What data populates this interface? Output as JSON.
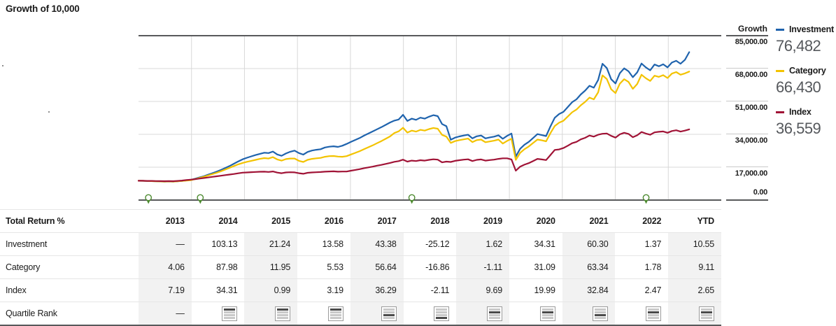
{
  "title": "Growth of 10,000",
  "chart_data": {
    "type": "line",
    "title": "Growth of 10,000",
    "x_unit": "monthly, Jan 2013 - Aug 2023 (years 2013-2022 plus YTD)",
    "grid": true,
    "legend_position": "right",
    "y_axis": {
      "title": "Growth",
      "max": 85000,
      "ticks": [
        {
          "label": "85,000.00",
          "value": 85000
        },
        {
          "label": "68,000.00",
          "value": 68000
        },
        {
          "label": "51,000.00",
          "value": 51000
        },
        {
          "label": "34,000.00",
          "value": 34000
        },
        {
          "label": "17,000.00",
          "value": 17000
        },
        {
          "label": "0.00",
          "value": 0
        }
      ]
    },
    "data_end_fraction": 0.945,
    "event_markers": {
      "color": "#4c8a2f",
      "positions": [
        0.017,
        0.106,
        0.469,
        0.871
      ]
    },
    "series": [
      {
        "name": "Investment",
        "color": "#1f63ad",
        "final_label": "76,482",
        "values": [
          10000,
          9950,
          9850,
          9800,
          9700,
          9620,
          9560,
          9620,
          9540,
          9680,
          9890,
          10150,
          10390,
          11000,
          11700,
          12300,
          13100,
          13900,
          14700,
          15600,
          16600,
          17600,
          18800,
          20000,
          21100,
          21900,
          22600,
          23300,
          23900,
          24500,
          24300,
          25100,
          23600,
          22900,
          24100,
          25000,
          25580,
          24300,
          23500,
          24900,
          25600,
          26000,
          26300,
          27200,
          27600,
          27800,
          27500,
          28100,
          29060,
          30100,
          31100,
          32100,
          33300,
          34400,
          35500,
          36600,
          37700,
          38900,
          40100,
          41100,
          41660,
          44100,
          40900,
          42100,
          41500,
          42600,
          42100,
          43100,
          43900,
          43400,
          39300,
          38200,
          31200,
          32300,
          32900,
          33400,
          33800,
          31900,
          33000,
          33400,
          31900,
          32400,
          32800,
          33500,
          31700,
          33200,
          34400,
          22500,
          26500,
          28600,
          30100,
          32100,
          34100,
          33600,
          33100,
          38100,
          42580,
          44500,
          45600,
          48100,
          50600,
          52100,
          54600,
          56600,
          59100,
          58100,
          62100,
          70500,
          68260,
          62500,
          60300,
          65600,
          68100,
          66600,
          63500,
          66000,
          70600,
          68600,
          67100,
          70100,
          69200,
          70200,
          68600,
          71100,
          72000,
          70500,
          72500,
          76482
        ]
      },
      {
        "name": "Category",
        "color": "#f3c300",
        "final_label": "66,430",
        "values": [
          10000,
          9960,
          9870,
          9820,
          9730,
          9650,
          9600,
          9660,
          9580,
          9720,
          9900,
          10100,
          10220,
          10800,
          11400,
          12000,
          12700,
          13400,
          14100,
          14900,
          15800,
          16700,
          17600,
          18500,
          19210,
          19800,
          20300,
          20800,
          21300,
          21700,
          21500,
          22200,
          21000,
          20400,
          21200,
          21500,
          21500,
          20300,
          19700,
          20800,
          21300,
          21600,
          21800,
          22400,
          22700,
          22800,
          22500,
          22400,
          22700,
          23600,
          24400,
          25300,
          26300,
          27300,
          28300,
          29400,
          30500,
          31700,
          32900,
          34700,
          35550,
          37400,
          34900,
          35900,
          35400,
          36300,
          35900,
          36700,
          37300,
          36900,
          33700,
          32800,
          29560,
          30500,
          31000,
          31400,
          31800,
          30000,
          31000,
          31300,
          29900,
          30300,
          30700,
          31300,
          29230,
          30600,
          31700,
          20800,
          24400,
          26300,
          27700,
          29500,
          31300,
          30900,
          30400,
          34600,
          38320,
          40000,
          41000,
          43200,
          45400,
          46800,
          49000,
          50800,
          53000,
          52100,
          55700,
          64500,
          62590,
          57300,
          55300,
          60200,
          62500,
          61100,
          57500,
          60000,
          64800,
          63000,
          61600,
          64300,
          63700,
          64600,
          63100,
          65400,
          66200,
          64800,
          65500,
          66430
        ]
      },
      {
        "name": "Index",
        "color": "#a01336",
        "final_label": "36,559",
        "values": [
          10000,
          9980,
          9920,
          9900,
          9850,
          9800,
          9760,
          9820,
          9780,
          9900,
          10100,
          10350,
          10550,
          10800,
          11100,
          11400,
          11700,
          12000,
          12300,
          12600,
          12900,
          13200,
          13500,
          13850,
          14170,
          14300,
          14450,
          14550,
          14650,
          14700,
          14550,
          14800,
          14200,
          13900,
          14300,
          14400,
          14310,
          13900,
          13600,
          14100,
          14300,
          14400,
          14500,
          14700,
          14800,
          14850,
          14700,
          14750,
          14770,
          15200,
          15600,
          16000,
          16500,
          16900,
          17300,
          17800,
          18200,
          18700,
          19200,
          19800,
          20130,
          20900,
          19900,
          20400,
          20200,
          20600,
          20400,
          20800,
          21100,
          20900,
          19500,
          19900,
          19700,
          20300,
          20600,
          20900,
          21100,
          20200,
          20800,
          21000,
          20400,
          20700,
          20900,
          21300,
          21610,
          21600,
          21000,
          15200,
          17300,
          18300,
          19100,
          20200,
          21300,
          21000,
          20700,
          23300,
          25930,
          26200,
          26900,
          28100,
          29400,
          30100,
          31400,
          32200,
          33400,
          32800,
          33800,
          34300,
          34440,
          33200,
          32300,
          34000,
          34800,
          34200,
          32500,
          33500,
          35200,
          34400,
          33800,
          35000,
          35300,
          35500,
          34800,
          35700,
          36100,
          35400,
          35900,
          36559
        ]
      }
    ]
  },
  "table": {
    "header": [
      "Total Return %",
      "2013",
      "2014",
      "2015",
      "2016",
      "2017",
      "2018",
      "2019",
      "2020",
      "2021",
      "2022",
      "YTD"
    ],
    "rows": [
      {
        "label": "Investment",
        "values": [
          "—",
          "103.13",
          "21.24",
          "13.58",
          "43.38",
          "-25.12",
          "1.62",
          "34.31",
          "60.30",
          "1.37",
          "10.55"
        ]
      },
      {
        "label": "Category",
        "values": [
          "4.06",
          "87.98",
          "11.95",
          "5.53",
          "56.64",
          "-16.86",
          "-1.11",
          "31.09",
          "63.34",
          "1.78",
          "9.11"
        ]
      },
      {
        "label": "Index",
        "values": [
          "7.19",
          "34.31",
          "0.99",
          "3.19",
          "36.29",
          "-2.11",
          "9.69",
          "19.99",
          "32.84",
          "2.47",
          "2.65"
        ]
      }
    ],
    "quartile": {
      "label": "Quartile Rank",
      "values": [
        0,
        1,
        1,
        1,
        3,
        4,
        2,
        2,
        3,
        2,
        2
      ]
    }
  }
}
